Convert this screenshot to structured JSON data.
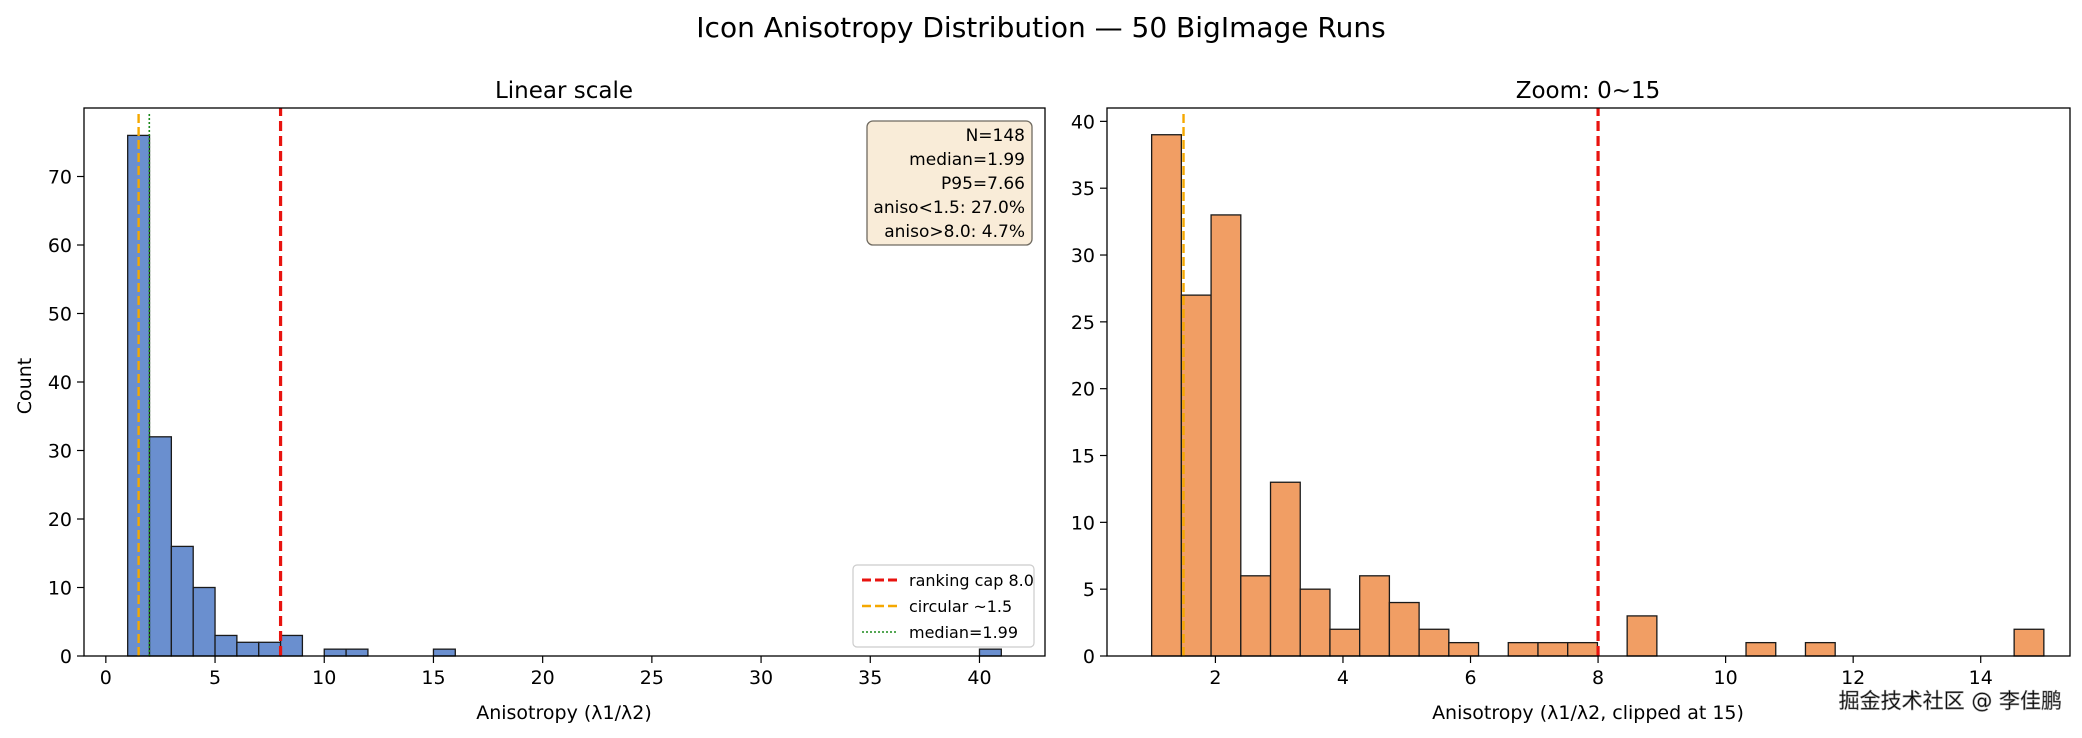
{
  "figure": {
    "title": "Icon Anisotropy Distribution — 50 BigImage Runs",
    "watermark": "掘金技术社区 @ 李佳鹏"
  },
  "chart_data": [
    {
      "type": "bar",
      "title": "Linear scale",
      "xlabel": "Anisotropy (λ1/λ2)",
      "ylabel": "Count",
      "xlim": [
        -1,
        43
      ],
      "ylim": [
        0,
        80
      ],
      "xticks": [
        0,
        5,
        10,
        15,
        20,
        25,
        30,
        35,
        40
      ],
      "yticks": [
        0,
        10,
        20,
        30,
        40,
        50,
        60,
        70
      ],
      "bar_color": "#6a8fcf",
      "bins": [
        {
          "x0": 1.0,
          "x1": 2.0,
          "count": 76
        },
        {
          "x0": 2.0,
          "x1": 3.0,
          "count": 32
        },
        {
          "x0": 3.0,
          "x1": 4.0,
          "count": 16
        },
        {
          "x0": 4.0,
          "x1": 5.0,
          "count": 10
        },
        {
          "x0": 5.0,
          "x1": 6.0,
          "count": 3
        },
        {
          "x0": 6.0,
          "x1": 7.0,
          "count": 2
        },
        {
          "x0": 7.0,
          "x1": 8.0,
          "count": 2
        },
        {
          "x0": 8.0,
          "x1": 9.0,
          "count": 3
        },
        {
          "x0": 10.0,
          "x1": 11.0,
          "count": 1
        },
        {
          "x0": 11.0,
          "x1": 12.0,
          "count": 1
        },
        {
          "x0": 15.0,
          "x1": 16.0,
          "count": 1
        },
        {
          "x0": 40.0,
          "x1": 41.0,
          "count": 1
        }
      ],
      "vlines": [
        {
          "x": 8.0,
          "label": "ranking cap 8.0",
          "color": "#e8130f",
          "style": "dashed"
        },
        {
          "x": 1.5,
          "label": "circular ~1.5",
          "color": "#f5a800",
          "style": "dashed"
        },
        {
          "x": 1.99,
          "label": "median=1.99",
          "color": "#1c8a1c",
          "style": "dotted"
        }
      ],
      "legend_position": "lower-right",
      "stats_box": {
        "position": "top-right",
        "lines": [
          "N=148",
          "median=1.99",
          "P95=7.66",
          "aniso<1.5: 27.0%",
          "aniso>8.0: 4.7%"
        ]
      }
    },
    {
      "type": "bar",
      "title": "Zoom: 0~15",
      "xlabel": "Anisotropy (λ1/λ2, clipped at 15)",
      "ylabel": "",
      "xlim": [
        0.3,
        15.4
      ],
      "ylim": [
        0,
        41
      ],
      "xticks": [
        2,
        4,
        6,
        8,
        10,
        12,
        14
      ],
      "yticks": [
        0,
        5,
        10,
        15,
        20,
        25,
        30,
        35,
        40
      ],
      "bar_color": "#f19e64",
      "bin_width": 0.466,
      "bins": [
        {
          "x0": 1.0,
          "count": 39
        },
        {
          "x0": 1.466,
          "count": 27
        },
        {
          "x0": 1.932,
          "count": 33
        },
        {
          "x0": 2.398,
          "count": 6
        },
        {
          "x0": 2.864,
          "count": 13
        },
        {
          "x0": 3.33,
          "count": 5
        },
        {
          "x0": 3.796,
          "count": 2
        },
        {
          "x0": 4.262,
          "count": 6
        },
        {
          "x0": 4.728,
          "count": 4
        },
        {
          "x0": 5.194,
          "count": 2
        },
        {
          "x0": 5.66,
          "count": 1
        },
        {
          "x0": 6.592,
          "count": 1
        },
        {
          "x0": 7.058,
          "count": 1
        },
        {
          "x0": 7.524,
          "count": 1
        },
        {
          "x0": 8.456,
          "count": 3
        },
        {
          "x0": 10.32,
          "count": 1
        },
        {
          "x0": 11.252,
          "count": 1
        },
        {
          "x0": 14.524,
          "count": 2
        }
      ],
      "vlines": [
        {
          "x": 8.0,
          "color": "#e8130f",
          "style": "dashed"
        },
        {
          "x": 1.5,
          "color": "#f5a800",
          "style": "dashed"
        }
      ]
    }
  ]
}
